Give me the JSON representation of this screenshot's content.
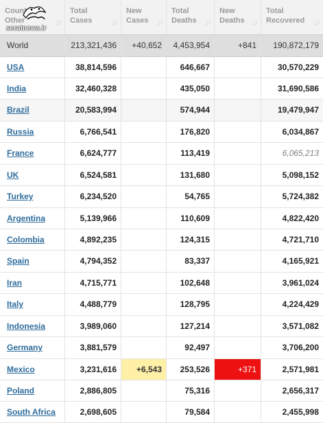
{
  "header": {
    "country": [
      "Country,",
      "Other"
    ],
    "total_cases": [
      "Total",
      "Cases"
    ],
    "new_cases": [
      "New",
      "Cases"
    ],
    "total_deaths": [
      "Total",
      "Deaths"
    ],
    "new_deaths": [
      "New",
      "Deaths"
    ],
    "total_recovered": [
      "Total",
      "Recovered"
    ],
    "sort_icon": "sort-arrows-icon"
  },
  "watermark": {
    "text": "seratnews.ir"
  },
  "world": {
    "name": "World",
    "total_cases": "213,321,436",
    "new_cases": "+40,652",
    "total_deaths": "4,453,954",
    "new_deaths": "+841",
    "total_recovered": "190,872,179"
  },
  "countries": [
    {
      "name": "USA",
      "total_cases": "38,814,596",
      "new_cases": "",
      "total_deaths": "646,667",
      "new_deaths": "",
      "total_recovered": "30,570,229"
    },
    {
      "name": "India",
      "total_cases": "32,460,328",
      "new_cases": "",
      "total_deaths": "435,050",
      "new_deaths": "",
      "total_recovered": "31,690,586"
    },
    {
      "name": "Brazil",
      "total_cases": "20,583,994",
      "new_cases": "",
      "total_deaths": "574,944",
      "new_deaths": "",
      "total_recovered": "19,479,947"
    },
    {
      "name": "Russia",
      "total_cases": "6,766,541",
      "new_cases": "",
      "total_deaths": "176,820",
      "new_deaths": "",
      "total_recovered": "6,034,867"
    },
    {
      "name": "France",
      "total_cases": "6,624,777",
      "new_cases": "",
      "total_deaths": "113,419",
      "new_deaths": "",
      "total_recovered": "6,065,213"
    },
    {
      "name": "UK",
      "total_cases": "6,524,581",
      "new_cases": "",
      "total_deaths": "131,680",
      "new_deaths": "",
      "total_recovered": "5,098,152"
    },
    {
      "name": "Turkey",
      "total_cases": "6,234,520",
      "new_cases": "",
      "total_deaths": "54,765",
      "new_deaths": "",
      "total_recovered": "5,724,382"
    },
    {
      "name": "Argentina",
      "total_cases": "5,139,966",
      "new_cases": "",
      "total_deaths": "110,609",
      "new_deaths": "",
      "total_recovered": "4,822,420"
    },
    {
      "name": "Colombia",
      "total_cases": "4,892,235",
      "new_cases": "",
      "total_deaths": "124,315",
      "new_deaths": "",
      "total_recovered": "4,721,710"
    },
    {
      "name": "Spain",
      "total_cases": "4,794,352",
      "new_cases": "",
      "total_deaths": "83,337",
      "new_deaths": "",
      "total_recovered": "4,165,921"
    },
    {
      "name": "Iran",
      "total_cases": "4,715,771",
      "new_cases": "",
      "total_deaths": "102,648",
      "new_deaths": "",
      "total_recovered": "3,961,024"
    },
    {
      "name": "Italy",
      "total_cases": "4,488,779",
      "new_cases": "",
      "total_deaths": "128,795",
      "new_deaths": "",
      "total_recovered": "4,224,429"
    },
    {
      "name": "Indonesia",
      "total_cases": "3,989,060",
      "new_cases": "",
      "total_deaths": "127,214",
      "new_deaths": "",
      "total_recovered": "3,571,082"
    },
    {
      "name": "Germany",
      "total_cases": "3,881,579",
      "new_cases": "",
      "total_deaths": "92,497",
      "new_deaths": "",
      "total_recovered": "3,706,200"
    },
    {
      "name": "Mexico",
      "total_cases": "3,231,616",
      "new_cases": "+6,543",
      "total_deaths": "253,526",
      "new_deaths": "+371",
      "total_recovered": "2,571,981"
    },
    {
      "name": "Poland",
      "total_cases": "2,886,805",
      "new_cases": "",
      "total_deaths": "75,316",
      "new_deaths": "",
      "total_recovered": "2,656,317"
    },
    {
      "name": "South Africa",
      "total_cases": "2,698,605",
      "new_cases": "",
      "total_deaths": "79,584",
      "new_deaths": "",
      "total_recovered": "2,455,998"
    }
  ],
  "colors": {
    "link": "#2e6c9c",
    "new_cases_highlight": "#fff0a8",
    "new_deaths_highlight": "#ee1111",
    "world_row": "#dedede"
  }
}
